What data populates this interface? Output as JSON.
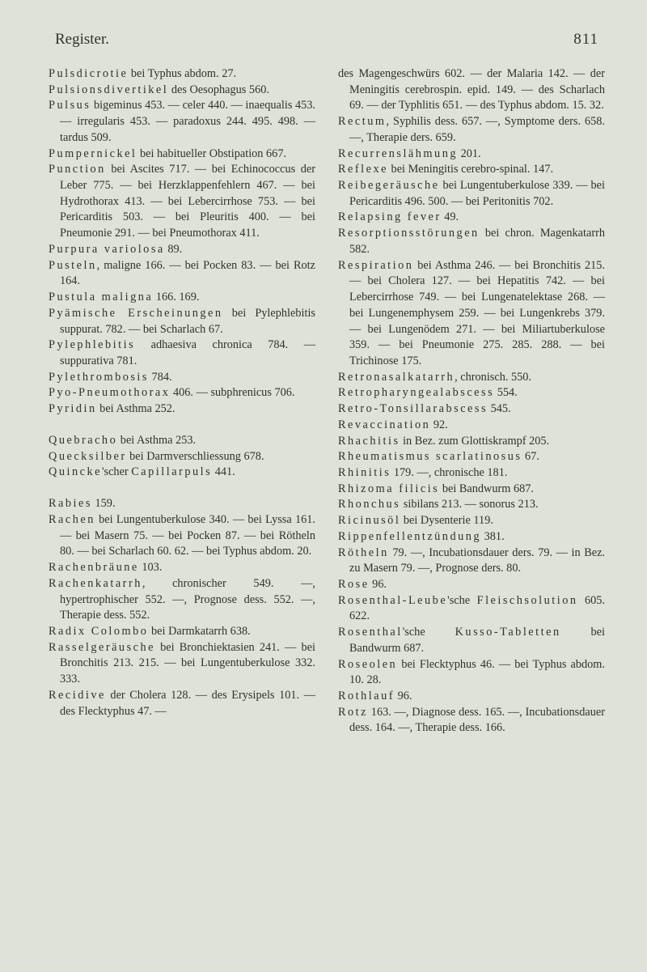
{
  "header": {
    "title": "Register.",
    "pageNumber": "811"
  },
  "leftColumn": [
    "<span class='spaced'>Pulsdicrotie</span> bei Typhus abdom. 27.",
    "<span class='spaced'>Pulsionsdivertikel</span> des Oesophagus 560.",
    "<span class='spaced'>Pulsus</span> bigeminus 453. — celer 440. — inaequalis 453. — irregularis 453. — paradoxus 244. 495. 498. — tardus 509.",
    "<span class='spaced'>Pumpernickel</span> bei habitueller Obstipation 667.",
    "<span class='spaced'>Punction</span> bei Ascites 717. — bei Echinococcus der Leber 775. — bei Herzklappenfehlern 467. — bei Hydrothorax 413. — bei Lebercirrhose 753. — bei Pericarditis 503. — bei Pleuritis 400. — bei Pneumonie 291. — bei Pneumothorax 411.",
    "<span class='spaced'>Purpura variolosa</span> 89.",
    "<span class='spaced'>Pusteln</span>, maligne 166. — bei Pocken 83. — bei Rotz 164.",
    "<span class='spaced'>Pustula maligna</span> 166. 169.",
    "<span class='spaced'>Pyämische Erscheinungen</span> bei Pylephlebitis suppurat. 782. — bei Scharlach 67.",
    "<span class='spaced'>Pylephlebitis</span> adhaesiva chronica 784. — suppurativa 781.",
    "<span class='spaced'>Pylethrombosis</span> 784.",
    "<span class='spaced'>Pyo-Pneumothorax</span> 406. — subphrenicus 706.",
    "<span class='spaced'>Pyridin</span> bei Asthma 252.",
    "",
    "<span class='spaced'>Quebracho</span> bei Asthma 253.",
    "<span class='spaced'>Quecksilber</span> bei Darmverschliessung 678.",
    "<span class='spaced'>Quincke</span>'scher <span class='spaced'>Capillarpuls</span> 441.",
    "",
    "<span class='spaced'>Rabies</span> 159.",
    "<span class='spaced'>Rachen</span> bei Lungentuberkulose 340. — bei Lyssa 161. — bei Masern 75. — bei Pocken 87. — bei Rötheln 80. — bei Scharlach 60. 62. — bei Typhus abdom. 20.",
    "<span class='spaced'>Rachenbräune</span> 103.",
    "<span class='spaced'>Rachenkatarrh</span>, chronischer 549. —, hypertrophischer 552. —, Prognose dess. 552. —, Therapie dess. 552.",
    "<span class='spaced'>Radix Colombo</span> bei Darmkatarrh 638.",
    "<span class='spaced'>Rasselgeräusche</span> bei Bronchiektasien 241. — bei Bronchitis 213. 215. — bei Lungentuberkulose 332. 333.",
    "<span class='spaced'>Recidive</span> der Cholera 128. — des Erysipels 101. — des Flecktyphus 47. —"
  ],
  "rightColumn": [
    "des Magengeschwürs 602. — der Malaria 142. — der Meningitis cerebrospin. epid. 149. — des Scharlach 69. — der Typhlitis 651. — des Typhus abdom. 15. 32.",
    "<span class='spaced'>Rectum</span>, Syphilis dess. 657. —, Symptome ders. 658. —, Therapie ders. 659.",
    "<span class='spaced'>Recurrenslähmung</span> 201.",
    "<span class='spaced'>Reflexe</span> bei Meningitis cerebro-spinal. 147.",
    "<span class='spaced'>Reibegeräusche</span> bei Lungentuberkulose 339. — bei Pericarditis 496. 500. — bei Peritonitis 702.",
    "<span class='spaced'>Relapsing fever</span> 49.",
    "<span class='spaced'>Resorptionsstörungen</span> bei chron. Magenkatarrh 582.",
    "<span class='spaced'>Respiration</span> bei Asthma 246. — bei Bronchitis 215. — bei Cholera 127. — bei Hepatitis 742. — bei Lebercirrhose 749. — bei Lungenatelektase 268. — bei Lungenemphysem 259. — bei Lungenkrebs 379. — bei Lungenödem 271. — bei Miliartuberkulose 359. — bei Pneumonie 275. 285. 288. — bei Trichinose 175.",
    "<span class='spaced'>Retronasalkatarrh</span>, chronisch. 550.",
    "<span class='spaced'>Retropharyngealabscess</span> 554.",
    "<span class='spaced'>Retro-Tonsillarabscess</span> 545.",
    "<span class='spaced'>Revaccination</span> 92.",
    "<span class='spaced'>Rhachitis</span> in Bez. zum Glottiskrampf 205.",
    "<span class='spaced'>Rheumatismus scarlatinosus</span> 67.",
    "<span class='spaced'>Rhinitis</span> 179. —, chronische 181.",
    "<span class='spaced'>Rhizoma filicis</span> bei Bandwurm 687.",
    "<span class='spaced'>Rhonchus</span> sibilans 213. — sonorus 213.",
    "<span class='spaced'>Ricinusöl</span> bei Dysenterie 119.",
    "<span class='spaced'>Rippenfellentzündung</span> 381.",
    "<span class='spaced'>Rötheln</span> 79. —, Incubationsdauer ders. 79. — in Bez. zu Masern 79. —, Prognose ders. 80.",
    "<span class='spaced'>Rose</span> 96.",
    "<span class='spaced'>Rosenthal-Leube</span>'sche <span class='spaced'>Fleischsolution</span> 605. 622.",
    "<span class='spaced'>Rosenthal</span>'sche <span class='spaced'>Kusso-Tabletten</span> bei Bandwurm 687.",
    "<span class='spaced'>Roseolen</span> bei Flecktyphus 46. — bei Typhus abdom. 10. 28.",
    "<span class='spaced'>Rothlauf</span> 96.",
    "<span class='spaced'>Rotz</span> 163. —, Diagnose dess. 165. —, Incubationsdauer dess. 164. —, Therapie dess. 166."
  ],
  "colors": {
    "background": "#dfe2d9",
    "text": "#2e332c"
  },
  "typography": {
    "body_fontsize": 14.3,
    "header_fontsize": 19,
    "line_height": 1.38
  }
}
